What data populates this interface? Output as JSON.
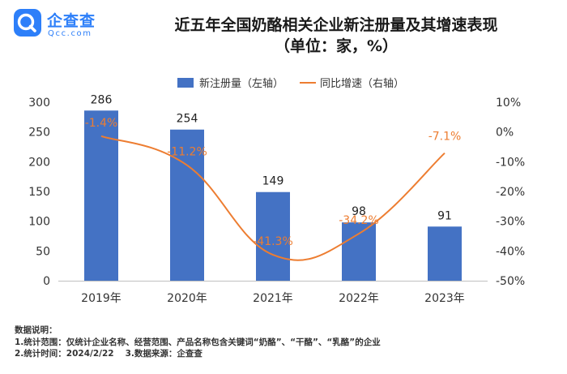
{
  "brand": {
    "name": "企查查",
    "domain": "Qcc.com"
  },
  "title": "近五年全国奶酪相关企业新注册量及其增速表现",
  "subtitle": "（单位：家，%）",
  "chart_data": {
    "type": "bar+line",
    "categories": [
      "2019年",
      "2020年",
      "2021年",
      "2022年",
      "2023年"
    ],
    "series": [
      {
        "name": "新注册量（左轴）",
        "type": "bar",
        "axis": "left",
        "color": "#4472c4",
        "values": [
          286,
          254,
          149,
          98,
          91
        ],
        "labels": [
          "286",
          "254",
          "149",
          "98",
          "91"
        ]
      },
      {
        "name": "同比增速（右轴）",
        "type": "line",
        "axis": "right",
        "color": "#ed7d31",
        "values": [
          -1.4,
          -11.2,
          -41.3,
          -34.2,
          -7.1
        ],
        "labels": [
          "-1.4%",
          "-11.2%",
          "-41.3%",
          "-34.2%",
          "-7.1%"
        ]
      }
    ],
    "left_axis": {
      "min": 0,
      "max": 300,
      "ticks": [
        "0",
        "50",
        "100",
        "150",
        "200",
        "250",
        "300"
      ]
    },
    "right_axis": {
      "min": -50,
      "max": 10,
      "ticks": [
        "-50%",
        "-40%",
        "-30%",
        "-20%",
        "-10%",
        "0%",
        "10%"
      ]
    },
    "legend_position": "top",
    "grid": false
  },
  "notes": {
    "heading": "数据说明：",
    "line1": "1.统计范围：仅统计企业名称、经营范围、产品名称包含关键词“奶酪”、“干酪”、“乳酪”的企业",
    "line2a": "2.统计时间：2024/2/22",
    "line2b": "3.数据来源：企查查"
  }
}
